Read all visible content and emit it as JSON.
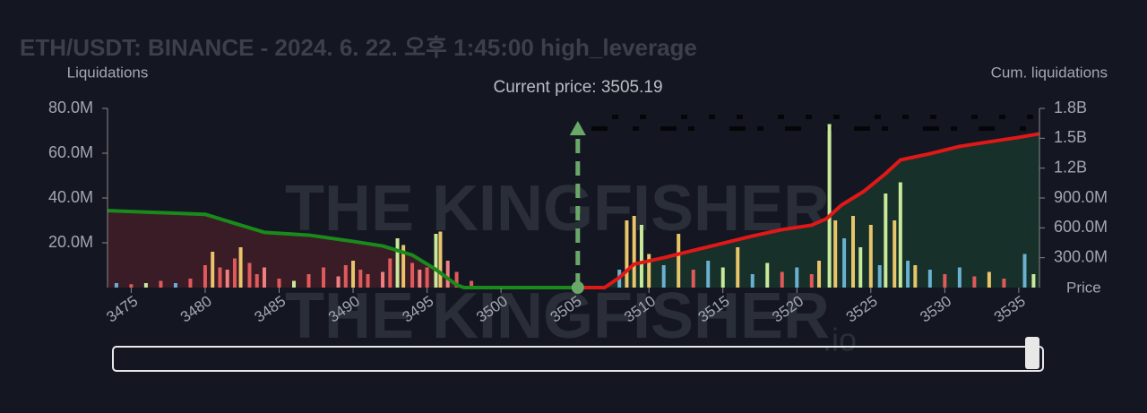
{
  "chart_data": {
    "type": "liquidation",
    "title": "ETH/USDT: BINANCE - 2024. 6. 22. 오후 1:45:00 high_leverage",
    "y_label": "Liquidations",
    "y2_label": "Cum. liquidations",
    "x_label": "Price",
    "watermark": "THE KINGFISHER",
    "watermark_suffix": ".io",
    "current_price": 3505.19,
    "current_price_label": "Current price: 3505.19",
    "current_price_color": "#6aa86a",
    "xlim": [
      3473.4,
      3536.4
    ],
    "xticks": [
      3475,
      3480,
      3485,
      3490,
      3495,
      3500,
      3505,
      3510,
      3515,
      3520,
      3525,
      3530,
      3535
    ],
    "ylim": [
      0,
      80000000
    ],
    "yticks": [
      {
        "value": 20000000,
        "label": "20.0M"
      },
      {
        "value": 40000000,
        "label": "40.0M"
      },
      {
        "value": 60000000,
        "label": "60.0M"
      },
      {
        "value": 80000000,
        "label": "80.0M"
      }
    ],
    "y2lim": [
      0,
      1800000000
    ],
    "y2ticks": [
      {
        "value": 300000000,
        "label": "300.0M"
      },
      {
        "value": 600000000,
        "label": "600.0M"
      },
      {
        "value": 900000000,
        "label": "900.0M"
      },
      {
        "value": 1200000000,
        "label": "1.2B"
      },
      {
        "value": 1500000000,
        "label": "1.5B"
      },
      {
        "value": 1800000000,
        "label": "1.8B"
      }
    ],
    "bars": {
      "x": [
        3474.0,
        3475.0,
        3476.0,
        3477.0,
        3478.0,
        3479.0,
        3480.0,
        3480.5,
        3481.0,
        3481.5,
        3482.0,
        3482.4,
        3483.0,
        3483.5,
        3484.0,
        3485.0,
        3486.0,
        3487.0,
        3488.0,
        3489.0,
        3489.5,
        3490.0,
        3490.5,
        3491.0,
        3492.0,
        3492.5,
        3493.0,
        3493.4,
        3494.0,
        3494.5,
        3495.0,
        3495.6,
        3495.9,
        3496.4,
        3497.0,
        3498.0,
        3508.0,
        3508.5,
        3509.0,
        3509.5,
        3510.0,
        3511.0,
        3512.0,
        3513.0,
        3514.0,
        3515.0,
        3516.0,
        3517.0,
        3518.0,
        3519.0,
        3520.0,
        3521.0,
        3521.5,
        3522.2,
        3522.6,
        3523.2,
        3523.8,
        3524.3,
        3525.0,
        3525.6,
        3526.0,
        3526.6,
        3527.0,
        3527.5,
        3528.0,
        3529.0,
        3530.0,
        3531.0,
        3532.0,
        3533.0,
        3534.0,
        3535.4,
        3536.0
      ],
      "values": [
        2000000,
        1500000,
        2000000,
        3000000,
        2000000,
        4000000,
        10000000,
        16000000,
        9000000,
        8000000,
        13000000,
        18000000,
        11000000,
        6000000,
        9000000,
        4000000,
        3000000,
        6000000,
        9000000,
        5000000,
        10000000,
        12000000,
        8000000,
        6000000,
        7000000,
        13000000,
        22000000,
        19000000,
        11000000,
        8000000,
        9000000,
        24000000,
        25000000,
        12000000,
        7000000,
        3000000,
        8000000,
        30000000,
        32000000,
        28000000,
        15000000,
        10000000,
        24000000,
        8000000,
        12000000,
        9000000,
        18000000,
        6000000,
        11000000,
        7000000,
        9000000,
        6000000,
        12000000,
        73000000,
        30000000,
        22000000,
        32000000,
        18000000,
        28000000,
        10000000,
        42000000,
        30000000,
        47000000,
        12000000,
        10000000,
        8000000,
        6000000,
        9000000,
        5000000,
        7000000,
        4000000,
        15000000,
        6000000
      ],
      "colors": [
        "#6ab0d0",
        "#e05a5a",
        "#c8e89a",
        "#e05a5a",
        "#6ab0d0",
        "#e05a5a",
        "#e05a5a",
        "#e8c46a",
        "#e05a5a",
        "#f08080",
        "#e05a5a",
        "#e8c46a",
        "#e05a5a",
        "#e05a5a",
        "#f08080",
        "#e05a5a",
        "#c8e89a",
        "#e05a5a",
        "#e05a5a",
        "#f08080",
        "#e05a5a",
        "#e8c46a",
        "#e05a5a",
        "#e05a5a",
        "#f08080",
        "#e05a5a",
        "#c8e89a",
        "#e8c46a",
        "#e05a5a",
        "#f08080",
        "#e05a5a",
        "#c8e89a",
        "#e8c46a",
        "#f08080",
        "#e05a5a",
        "#e05a5a",
        "#6ab0d0",
        "#e8c46a",
        "#e8c46a",
        "#c8e89a",
        "#e8c46a",
        "#6ab0d0",
        "#e8c46a",
        "#e05a5a",
        "#6ab0d0",
        "#c8e89a",
        "#e8c46a",
        "#6ab0d0",
        "#c8e89a",
        "#e05a5a",
        "#6ab0d0",
        "#e05a5a",
        "#e8c46a",
        "#c8e89a",
        "#e8c46a",
        "#6ab0d0",
        "#e8c46a",
        "#c8e89a",
        "#e8c46a",
        "#6ab0d0",
        "#c8e89a",
        "#e8c46a",
        "#c8e89a",
        "#6ab0d0",
        "#e8c46a",
        "#6ab0d0",
        "#e05a5a",
        "#6ab0d0",
        "#e05a5a",
        "#e8c46a",
        "#e05a5a",
        "#6ab0d0",
        "#c8e89a"
      ]
    },
    "series": [
      {
        "axis": "y2",
        "color": "#1a8a1a",
        "fill": "#3a1c26",
        "x": [
          3473.4,
          3480,
          3482,
          3484,
          3487,
          3490,
          3492,
          3494,
          3495.5,
          3497,
          3497.5,
          3505.19
        ],
        "values": [
          773000000,
          736000000,
          645000000,
          555000000,
          527000000,
          464000000,
          418000000,
          327000000,
          191000000,
          27000000,
          0,
          0
        ]
      },
      {
        "axis": "y2",
        "color": "#e01818",
        "fill": "#17302a",
        "x": [
          3505.19,
          3507,
          3508,
          3509,
          3511,
          3513,
          3515,
          3517,
          3519,
          3521,
          3522,
          3523,
          3524.5,
          3526,
          3527,
          3529,
          3531,
          3533,
          3535,
          3536.4
        ],
        "values": [
          0,
          0,
          100000000,
          236000000,
          300000000,
          373000000,
          445000000,
          518000000,
          582000000,
          627000000,
          691000000,
          827000000,
          964000000,
          1145000000,
          1282000000,
          1345000000,
          1418000000,
          1464000000,
          1509000000,
          1545000000
        ]
      }
    ]
  }
}
